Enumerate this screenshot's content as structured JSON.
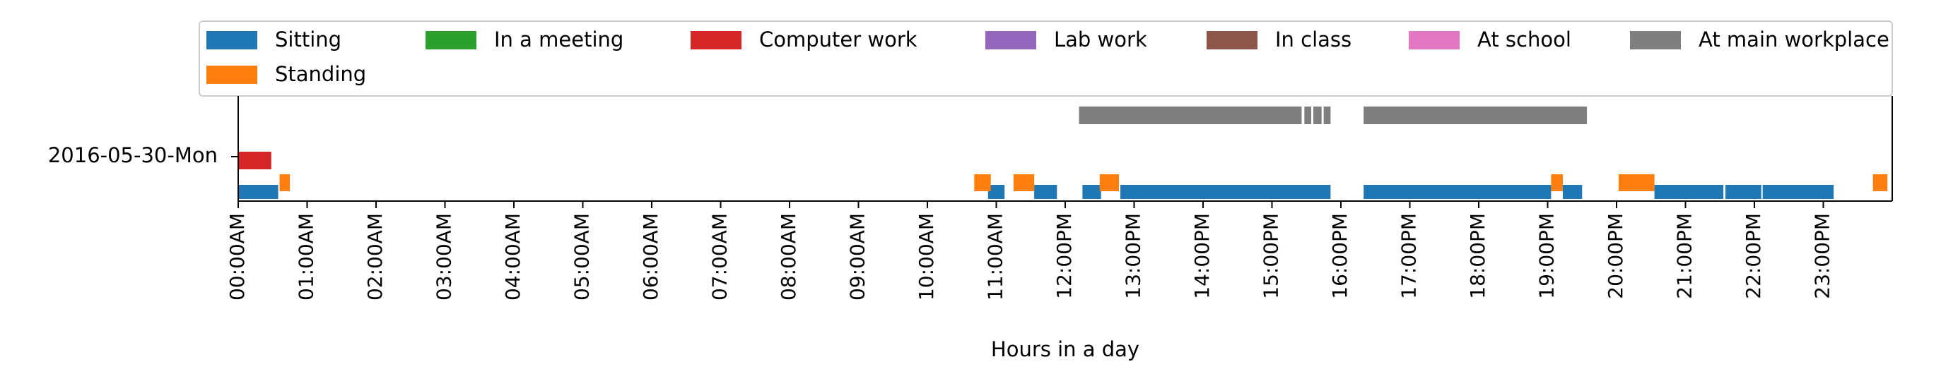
{
  "chart_data": {
    "type": "timeline",
    "xlabel": "Hours in a day",
    "xlim": [
      0,
      24
    ],
    "x_tick_labels": [
      "00:00AM",
      "01:00AM",
      "02:00AM",
      "03:00AM",
      "04:00AM",
      "05:00AM",
      "06:00AM",
      "07:00AM",
      "08:00AM",
      "09:00AM",
      "10:00AM",
      "11:00AM",
      "12:00PM",
      "13:00PM",
      "14:00PM",
      "15:00PM",
      "16:00PM",
      "17:00PM",
      "18:00PM",
      "19:00PM",
      "20:00PM",
      "21:00PM",
      "22:00PM",
      "23:00PM"
    ],
    "y_tick_labels": [
      "2016-05-30-Mon"
    ],
    "legend_position": "top",
    "legend": [
      {
        "name": "Sitting",
        "color": "#1f77b4"
      },
      {
        "name": "Standing",
        "color": "#ff7f0e"
      },
      {
        "name": "In a meeting",
        "color": "#2ca02c"
      },
      {
        "name": "Computer work",
        "color": "#d62728"
      },
      {
        "name": "Lab work",
        "color": "#9467bd"
      },
      {
        "name": "In class",
        "color": "#8c564b"
      },
      {
        "name": "At school",
        "color": "#e377c2"
      },
      {
        "name": "At main workplace",
        "color": "#7f7f7f"
      }
    ],
    "series": [
      {
        "name": "Sitting",
        "color": "#1f77b4",
        "intervals": [
          [
            0.0,
            0.58
          ],
          [
            10.88,
            11.12
          ],
          [
            11.55,
            11.88
          ],
          [
            12.25,
            12.52
          ],
          [
            12.8,
            15.85
          ],
          [
            16.33,
            19.05
          ],
          [
            19.22,
            19.5
          ],
          [
            20.55,
            21.55
          ],
          [
            21.58,
            22.1
          ],
          [
            22.12,
            23.15
          ]
        ]
      },
      {
        "name": "Standing",
        "color": "#ff7f0e",
        "intervals": [
          [
            0.6,
            0.75
          ],
          [
            10.68,
            10.92
          ],
          [
            11.25,
            11.55
          ],
          [
            12.5,
            12.78
          ],
          [
            19.05,
            19.22
          ],
          [
            20.03,
            20.55
          ],
          [
            23.72,
            23.93
          ]
        ]
      },
      {
        "name": "Computer work",
        "color": "#d62728",
        "intervals": [
          [
            0.0,
            0.48
          ]
        ]
      },
      {
        "name": "At main workplace",
        "color": "#7f7f7f",
        "intervals": [
          [
            12.2,
            15.43
          ],
          [
            15.47,
            15.57
          ],
          [
            15.6,
            15.72
          ],
          [
            15.75,
            15.85
          ],
          [
            16.33,
            19.57
          ]
        ]
      }
    ]
  }
}
